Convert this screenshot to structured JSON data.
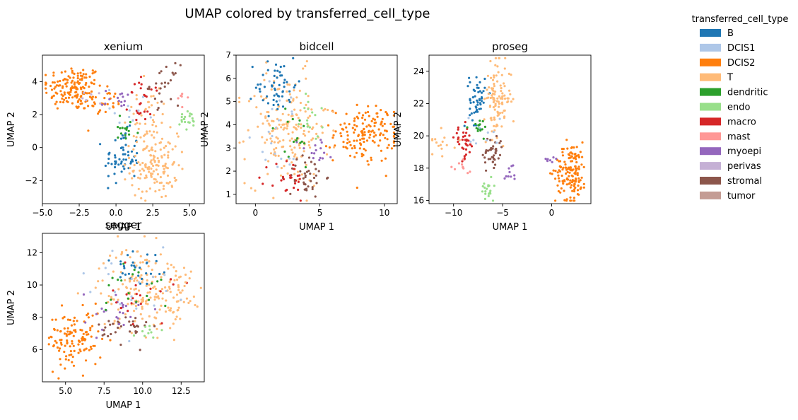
{
  "figure_title": "UMAP colored by transferred_cell_type",
  "legend": {
    "title": "transferred_cell_type",
    "placement": "top-right outside",
    "entries": [
      {
        "label": "B",
        "color": "#1f77b4"
      },
      {
        "label": "DCIS1",
        "color": "#aec7e8"
      },
      {
        "label": "DCIS2",
        "color": "#ff7f0e"
      },
      {
        "label": "T",
        "color": "#ffbb78"
      },
      {
        "label": "dendritic",
        "color": "#2ca02c"
      },
      {
        "label": "endo",
        "color": "#98df8a"
      },
      {
        "label": "macro",
        "color": "#d62728"
      },
      {
        "label": "mast",
        "color": "#ff9896"
      },
      {
        "label": "myoepi",
        "color": "#9467bd"
      },
      {
        "label": "perivas",
        "color": "#c5b0d5"
      },
      {
        "label": "stromal",
        "color": "#8c564b"
      },
      {
        "label": "tumor",
        "color": "#c49c94"
      }
    ]
  },
  "chart_data": [
    {
      "type": "scatter",
      "title": "xenium",
      "xlabel": "UMAP 1",
      "ylabel": "UMAP 2",
      "xlim": [
        -5,
        6
      ],
      "ylim": [
        -3.4,
        5.6
      ],
      "xticks": [
        -5.0,
        -2.5,
        0.0,
        2.5,
        5.0
      ],
      "xtick_labels": [
        "−5.0",
        "−2.5",
        "0.0",
        "2.5",
        "5.0"
      ],
      "yticks": [
        -2,
        0,
        2,
        4
      ],
      "ytick_labels": [
        "−2",
        "0",
        "2",
        "4"
      ],
      "clusters": [
        {
          "cell_type": "DCIS2",
          "cx": -2.9,
          "cy": 3.6,
          "sx": 1.0,
          "sy": 0.7,
          "n": 150
        },
        {
          "cell_type": "DCIS2",
          "cx": -0.8,
          "cy": 2.7,
          "sx": 0.7,
          "sy": 0.4,
          "n": 30
        },
        {
          "cell_type": "B",
          "cx": 0.4,
          "cy": -0.6,
          "sx": 0.6,
          "sy": 0.8,
          "n": 60
        },
        {
          "cell_type": "T",
          "cx": 2.6,
          "cy": -1.1,
          "sx": 0.8,
          "sy": 1.0,
          "n": 140
        },
        {
          "cell_type": "T",
          "cx": 2.0,
          "cy": 1.8,
          "sx": 0.8,
          "sy": 1.0,
          "n": 40
        },
        {
          "cell_type": "stromal",
          "cx": 3.3,
          "cy": 3.8,
          "sx": 0.5,
          "sy": 0.6,
          "n": 25
        },
        {
          "cell_type": "macro",
          "cx": 1.9,
          "cy": 2.8,
          "sx": 0.5,
          "sy": 0.7,
          "n": 25
        },
        {
          "cell_type": "dendritic",
          "cx": 0.6,
          "cy": 1.0,
          "sx": 0.5,
          "sy": 0.5,
          "n": 15
        },
        {
          "cell_type": "endo",
          "cx": 4.9,
          "cy": 1.6,
          "sx": 0.4,
          "sy": 0.3,
          "n": 20
        },
        {
          "cell_type": "mast",
          "cx": 4.5,
          "cy": 3.0,
          "sx": 0.2,
          "sy": 0.2,
          "n": 6
        },
        {
          "cell_type": "myoepi",
          "cx": 0.3,
          "cy": 2.9,
          "sx": 0.6,
          "sy": 0.3,
          "n": 14
        },
        {
          "cell_type": "DCIS1",
          "cx": 1.0,
          "cy": 2.5,
          "sx": 0.8,
          "sy": 0.6,
          "n": 12
        },
        {
          "cell_type": "perivas",
          "cx": -1.5,
          "cy": 3.0,
          "sx": 0.5,
          "sy": 0.3,
          "n": 6
        }
      ]
    },
    {
      "type": "scatter",
      "title": "bidcell",
      "xlabel": "UMAP 1",
      "ylabel": "UMAP 2",
      "xlim": [
        -1.5,
        11
      ],
      "ylim": [
        0.6,
        7.0
      ],
      "xticks": [
        0,
        5,
        10
      ],
      "xtick_labels": [
        "0",
        "5",
        "10"
      ],
      "yticks": [
        1,
        2,
        3,
        4,
        5,
        6,
        7
      ],
      "ytick_labels": [
        "1",
        "2",
        "3",
        "4",
        "5",
        "6",
        "7"
      ],
      "clusters": [
        {
          "cell_type": "DCIS2",
          "cx": 8.5,
          "cy": 3.6,
          "sx": 1.2,
          "sy": 0.6,
          "n": 150
        },
        {
          "cell_type": "T",
          "cx": 2.5,
          "cy": 3.8,
          "sx": 1.6,
          "sy": 1.2,
          "n": 190
        },
        {
          "cell_type": "B",
          "cx": 1.6,
          "cy": 5.7,
          "sx": 0.8,
          "sy": 0.6,
          "n": 55
        },
        {
          "cell_type": "stromal",
          "cx": 4.0,
          "cy": 1.8,
          "sx": 0.7,
          "sy": 0.5,
          "n": 40
        },
        {
          "cell_type": "macro",
          "cx": 2.5,
          "cy": 1.6,
          "sx": 0.7,
          "sy": 0.5,
          "n": 25
        },
        {
          "cell_type": "endo",
          "cx": 4.5,
          "cy": 4.3,
          "sx": 0.5,
          "sy": 0.5,
          "n": 15
        },
        {
          "cell_type": "myoepi",
          "cx": 4.8,
          "cy": 2.8,
          "sx": 0.8,
          "sy": 0.4,
          "n": 15
        },
        {
          "cell_type": "dendritic",
          "cx": 2.8,
          "cy": 3.3,
          "sx": 1.0,
          "sy": 0.7,
          "n": 15
        },
        {
          "cell_type": "DCIS1",
          "cx": 2.0,
          "cy": 3.8,
          "sx": 1.5,
          "sy": 1.0,
          "n": 20
        }
      ]
    },
    {
      "type": "scatter",
      "title": "proseg",
      "xlabel": "UMAP 1",
      "ylabel": "UMAP 2",
      "xlim": [
        -12.5,
        4
      ],
      "ylim": [
        15.8,
        25.0
      ],
      "xticks": [
        -10,
        -5,
        0
      ],
      "xtick_labels": [
        "−10",
        "−5",
        "0"
      ],
      "yticks": [
        16,
        18,
        20,
        22,
        24
      ],
      "ytick_labels": [
        "16",
        "18",
        "20",
        "22",
        "24"
      ],
      "clusters": [
        {
          "cell_type": "DCIS2",
          "cx": 2.0,
          "cy": 17.8,
          "sx": 0.8,
          "sy": 0.9,
          "n": 150
        },
        {
          "cell_type": "B",
          "cx": -7.6,
          "cy": 22.3,
          "sx": 0.4,
          "sy": 0.8,
          "n": 50
        },
        {
          "cell_type": "T",
          "cx": -5.5,
          "cy": 22.3,
          "sx": 0.7,
          "sy": 1.1,
          "n": 110
        },
        {
          "cell_type": "macro",
          "cx": -8.9,
          "cy": 19.6,
          "sx": 0.5,
          "sy": 0.5,
          "n": 35
        },
        {
          "cell_type": "stromal",
          "cx": -6.0,
          "cy": 18.9,
          "sx": 0.5,
          "sy": 0.6,
          "n": 40
        },
        {
          "cell_type": "endo",
          "cx": -6.6,
          "cy": 16.8,
          "sx": 0.3,
          "sy": 0.4,
          "n": 20
        },
        {
          "cell_type": "dendritic",
          "cx": -7.4,
          "cy": 20.5,
          "sx": 0.5,
          "sy": 0.3,
          "n": 15
        },
        {
          "cell_type": "mast",
          "cx": -9.4,
          "cy": 18.0,
          "sx": 0.6,
          "sy": 0.2,
          "n": 10
        },
        {
          "cell_type": "T",
          "cx": -11.0,
          "cy": 19.6,
          "sx": 0.7,
          "sy": 0.4,
          "n": 15
        },
        {
          "cell_type": "myoepi",
          "cx": -4.0,
          "cy": 17.8,
          "sx": 0.4,
          "sy": 0.3,
          "n": 10
        },
        {
          "cell_type": "myoepi",
          "cx": -0.4,
          "cy": 18.6,
          "sx": 0.3,
          "sy": 0.2,
          "n": 8
        },
        {
          "cell_type": "DCIS1",
          "cx": -7.0,
          "cy": 20.0,
          "sx": 1.0,
          "sy": 0.8,
          "n": 10
        }
      ]
    },
    {
      "type": "scatter",
      "title": "segger",
      "xlabel": "UMAP 1",
      "ylabel": "UMAP 2",
      "xlim": [
        3.5,
        14
      ],
      "ylim": [
        4.0,
        13.2
      ],
      "xticks": [
        5.0,
        7.5,
        10.0,
        12.5
      ],
      "xtick_labels": [
        "5.0",
        "7.5",
        "10.0",
        "12.5"
      ],
      "yticks": [
        6,
        8,
        10,
        12
      ],
      "ytick_labels": [
        "6",
        "8",
        "10",
        "12"
      ],
      "clusters": [
        {
          "cell_type": "DCIS2",
          "cx": 5.6,
          "cy": 6.6,
          "sx": 0.9,
          "sy": 0.9,
          "n": 120
        },
        {
          "cell_type": "T",
          "cx": 10.0,
          "cy": 9.8,
          "sx": 1.4,
          "sy": 1.3,
          "n": 170
        },
        {
          "cell_type": "B",
          "cx": 9.8,
          "cy": 11.0,
          "sx": 1.0,
          "sy": 0.8,
          "n": 30
        },
        {
          "cell_type": "stromal",
          "cx": 8.8,
          "cy": 7.3,
          "sx": 0.8,
          "sy": 0.5,
          "n": 35
        },
        {
          "cell_type": "myoepi",
          "cx": 8.2,
          "cy": 8.3,
          "sx": 1.0,
          "sy": 0.6,
          "n": 25
        },
        {
          "cell_type": "macro",
          "cx": 10.0,
          "cy": 9.2,
          "sx": 1.0,
          "sy": 0.8,
          "n": 20
        },
        {
          "cell_type": "dendritic",
          "cx": 9.5,
          "cy": 9.8,
          "sx": 1.2,
          "sy": 0.9,
          "n": 20
        },
        {
          "cell_type": "endo",
          "cx": 10.6,
          "cy": 7.2,
          "sx": 0.5,
          "sy": 0.4,
          "n": 10
        },
        {
          "cell_type": "DCIS1",
          "cx": 9.0,
          "cy": 10.0,
          "sx": 1.5,
          "sy": 1.2,
          "n": 20
        },
        {
          "cell_type": "T",
          "cx": 12.6,
          "cy": 9.6,
          "sx": 0.6,
          "sy": 0.7,
          "n": 25
        }
      ]
    }
  ]
}
